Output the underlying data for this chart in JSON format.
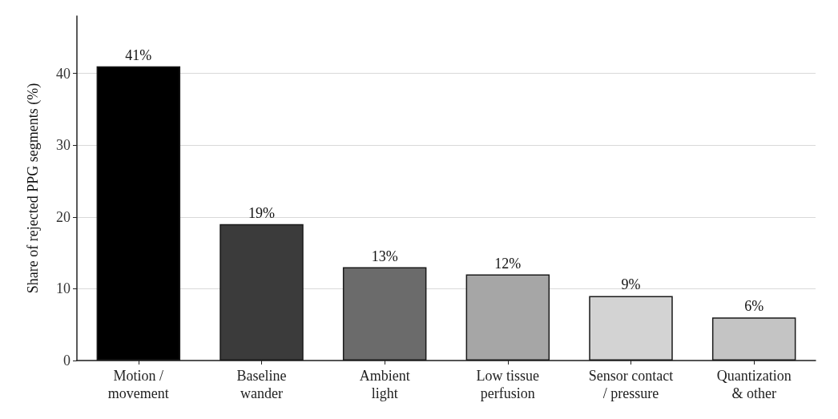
{
  "chart_data": {
    "type": "bar",
    "ylabel": "Share of rejected PPG segments (%)",
    "categories": [
      "Motion /\nmovement",
      "Baseline\nwander",
      "Ambient\nlight",
      "Low tissue\nperfusion",
      "Sensor contact\n/ pressure",
      "Quantization\n& other"
    ],
    "values": [
      41,
      19,
      13,
      12,
      9,
      6
    ],
    "colors": [
      "#000000",
      "#3b3b3b",
      "#6b6b6b",
      "#a6a6a6",
      "#d3d3d3",
      "#c4c4c4"
    ],
    "value_labels": [
      "41%",
      "19%",
      "13%",
      "12%",
      "9%",
      "6%"
    ],
    "ylim": [
      0,
      48
    ],
    "yticks": [
      0,
      10,
      20,
      30,
      40
    ],
    "grid": "y"
  }
}
